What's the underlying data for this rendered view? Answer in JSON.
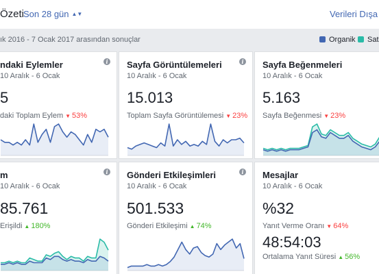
{
  "header": {
    "title": "Özeti",
    "period": "Son 28 gün",
    "export": "Verileri Dışa Ak"
  },
  "subheader": {
    "range": "ık 2016 - 7 Ocak 2017 arasından sonuçlar",
    "legend": [
      {
        "label": "Organik",
        "color": "#4267b2"
      },
      {
        "label": "Satın",
        "color": "#2abba7"
      }
    ]
  },
  "colors": {
    "organic": "#4267b2",
    "paid": "#2abba7",
    "down": "#fa3e3e",
    "up": "#42b72a"
  },
  "cards": [
    {
      "title": "ndaki Eylemler",
      "subtitle": "10 Aralık - 6 Ocak",
      "value": "5",
      "label": "daki Toplam Eylem",
      "delta": "53%",
      "delta_dir": "down",
      "organic": [
        6,
        5,
        5,
        4,
        5,
        4,
        6,
        4,
        12,
        5,
        8,
        10,
        5,
        11,
        12,
        9,
        7,
        9,
        8,
        6,
        4,
        8,
        5,
        10,
        9,
        10,
        7
      ]
    },
    {
      "title": "Sayfa Görüntülemeleri",
      "subtitle": "10 Aralık - 6 Ocak",
      "value": "15.013",
      "label": "Toplam Sayfa Görüntülemesi",
      "delta": "23%",
      "delta_dir": "down",
      "organic": [
        5,
        4,
        6,
        7,
        8,
        7,
        6,
        5,
        8,
        6,
        20,
        6,
        10,
        7,
        9,
        6,
        7,
        6,
        9,
        7,
        20,
        9,
        6,
        10,
        8,
        10,
        10,
        11,
        8
      ]
    },
    {
      "title": "Sayfa Beğenmeleri",
      "subtitle": "10 Aralık - 6 Ocak",
      "value": "5.163",
      "label": "Sayfa Beğenmesi",
      "delta": "23%",
      "delta_dir": "down",
      "organic": [
        4,
        3,
        4,
        3,
        4,
        3,
        4,
        4,
        4,
        5,
        6,
        16,
        18,
        13,
        12,
        16,
        14,
        12,
        12,
        14,
        10,
        8,
        6,
        5,
        4,
        6,
        10
      ],
      "paid": [
        5,
        4,
        5,
        4,
        5,
        4,
        5,
        5,
        5,
        6,
        7,
        20,
        22,
        15,
        14,
        18,
        16,
        14,
        14,
        16,
        12,
        10,
        8,
        7,
        6,
        8,
        13
      ]
    },
    {
      "title": "m",
      "subtitle": "10 Aralık - 6 Ocak",
      "value": "85.761",
      "label": "Erişildi",
      "delta": "180%",
      "delta_dir": "up",
      "organic": [
        4,
        4,
        5,
        4,
        5,
        4,
        4,
        6,
        5,
        5,
        5,
        8,
        7,
        9,
        9,
        7,
        6,
        7,
        6,
        6,
        5,
        7,
        6,
        6,
        9,
        8,
        6
      ],
      "paid": [
        5,
        5,
        6,
        5,
        6,
        5,
        5,
        8,
        7,
        6,
        6,
        10,
        9,
        11,
        12,
        9,
        7,
        9,
        8,
        8,
        6,
        9,
        8,
        8,
        20,
        18,
        13
      ]
    },
    {
      "title": "Gönderi Etkileşimleri",
      "subtitle": "10 Aralık - 6 Ocak",
      "value": "501.533",
      "label": "Gönderi Etkileşimi",
      "delta": "74%",
      "delta_dir": "up",
      "organic": [
        2,
        3,
        3,
        3,
        3,
        4,
        3,
        3,
        4,
        3,
        4,
        6,
        9,
        14,
        19,
        14,
        11,
        15,
        16,
        12,
        10,
        9,
        11,
        18,
        14,
        17,
        19,
        21,
        15,
        18,
        8
      ]
    },
    {
      "title": "Mesajlar",
      "subtitle": "10 Aralık - 6 Ocak",
      "value": "%32",
      "label": "Yanıt Verme Oranı",
      "delta": "64%",
      "delta_dir": "down",
      "value2": "48:54:03",
      "label2": "Ortalama Yanıt Süresi",
      "delta2": "56%",
      "delta2_dir": "up"
    }
  ]
}
